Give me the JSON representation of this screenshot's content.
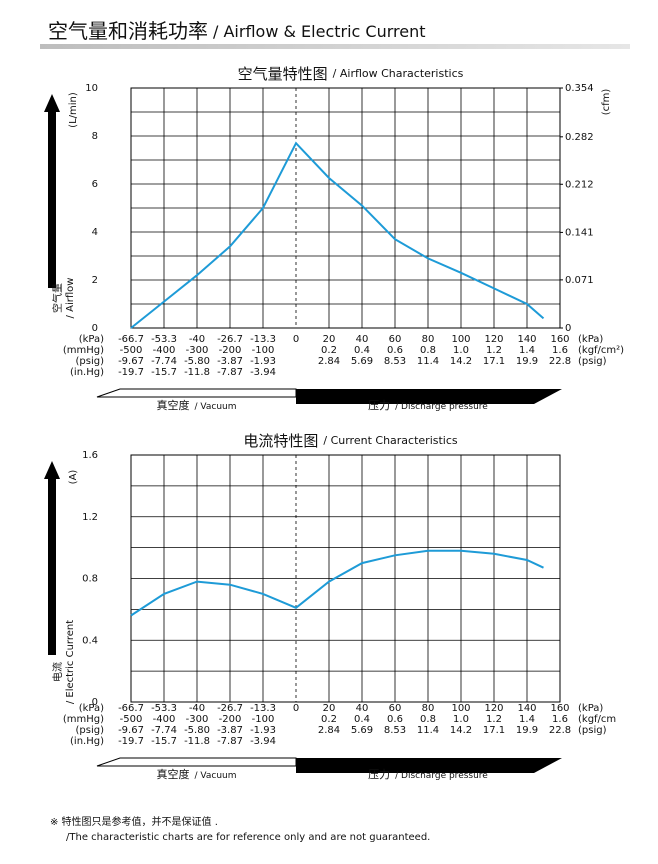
{
  "header": {
    "title_cn": "空气量和消耗功率",
    "title_en": "/ Airflow & Electric Current"
  },
  "chart_data": [
    {
      "type": "line",
      "title": "空气量特性图",
      "subtitle": "/ Airflow Characteristics",
      "y_label": "(L/min)",
      "y2_label": "(cfm)",
      "side_label_cn": "空气量",
      "side_label_en": "/ Airflow",
      "x": [
        -66.7,
        -53.3,
        -40,
        -26.7,
        -13.3,
        0,
        20,
        40,
        60,
        80,
        100,
        120,
        140,
        150
      ],
      "series": [
        {
          "color": "#1e9bd7",
          "values": [
            0,
            1.1,
            2.2,
            3.4,
            5.0,
            7.7,
            6.25,
            5.1,
            3.7,
            2.9,
            2.3,
            1.65,
            1.0,
            0.4
          ]
        }
      ],
      "xlim": [
        -66.7,
        160
      ],
      "xticks": [
        -66.7,
        -53.3,
        -40,
        -26.7,
        -13.3,
        0,
        20,
        40,
        60,
        80,
        100,
        120,
        140,
        160
      ],
      "x_rows": [
        [
          "-500",
          "-400",
          "-300",
          "-200",
          "-100",
          null,
          "0.2",
          "0.4",
          "0.6",
          "0.8",
          "1.0",
          "1.2",
          "1.4",
          "1.6"
        ],
        [
          "-9.67",
          "-7.74",
          "-5.80",
          "-3.87",
          "-1.93",
          null,
          "2.84",
          "5.69",
          "8.53",
          "11.4",
          "14.2",
          "17.1",
          "19.9",
          "22.8"
        ],
        [
          "-19.7",
          "-15.7",
          "-11.8",
          "-7.87",
          "-3.94",
          null,
          null,
          null,
          null,
          null,
          null,
          null,
          null,
          null
        ]
      ],
      "x_units_left": [
        "(kPa)",
        "(mmHg)",
        "(psig)",
        "(in.Hg)"
      ],
      "x_units_right": [
        "(kPa)",
        "(kgf/cm²)",
        "(psig)"
      ],
      "ylim": [
        0,
        10
      ],
      "yticks": [
        0,
        2,
        4,
        6,
        8,
        10
      ],
      "y_minor_ticks": [
        1,
        3,
        5,
        7,
        9
      ],
      "y2lim": [
        0,
        0.354
      ],
      "y2ticks": [
        0,
        0.071,
        0.141,
        0.212,
        0.282,
        0.354
      ],
      "zero_line": "dashed",
      "grid": true,
      "vacuum_label_cn": "真空度",
      "vacuum_label_en": "/ Vacuum",
      "pressure_label_cn": "压力",
      "pressure_label_en": "/ Discharge pressure"
    },
    {
      "type": "line",
      "title": "电流特性图",
      "subtitle": "/ Current Characteristics",
      "y_label": "(A)",
      "side_label_cn": "电流",
      "side_label_en": "/ Electric Current",
      "x": [
        -66.7,
        -53.3,
        -40,
        -26.7,
        -13.3,
        0,
        20,
        40,
        60,
        80,
        100,
        120,
        140,
        150
      ],
      "series": [
        {
          "color": "#1e9bd7",
          "values": [
            0.56,
            0.7,
            0.78,
            0.76,
            0.7,
            0.61,
            0.78,
            0.9,
            0.95,
            0.98,
            0.98,
            0.96,
            0.92,
            0.87
          ]
        }
      ],
      "xlim": [
        -66.7,
        160
      ],
      "xticks": [
        -66.7,
        -53.3,
        -40,
        -26.7,
        -13.3,
        0,
        20,
        40,
        60,
        80,
        100,
        120,
        140,
        160
      ],
      "x_rows": [
        [
          "-500",
          "-400",
          "-300",
          "-200",
          "-100",
          null,
          "0.2",
          "0.4",
          "0.6",
          "0.8",
          "1.0",
          "1.2",
          "1.4",
          "1.6"
        ],
        [
          "-9.67",
          "-7.74",
          "-5.80",
          "-3.87",
          "-1.93",
          null,
          "2.84",
          "5.69",
          "8.53",
          "11.4",
          "14.2",
          "17.1",
          "19.9",
          "22.8"
        ],
        [
          "-19.7",
          "-15.7",
          "-11.8",
          "-7.87",
          "-3.94",
          null,
          null,
          null,
          null,
          null,
          null,
          null,
          null,
          null
        ]
      ],
      "x_units_left": [
        "(kPa)",
        "(mmHg)",
        "(psig)",
        "(in.Hg)"
      ],
      "x_units_right": [
        "(kPa)",
        "(kgf/cm",
        "(psig)"
      ],
      "ylim": [
        0,
        1.6
      ],
      "yticks": [
        0,
        0.4,
        0.8,
        1.2,
        1.6
      ],
      "y_minor_ticks": [
        0.2,
        0.6,
        1.0,
        1.4
      ],
      "zero_line": "dashed",
      "grid": true,
      "vacuum_label_cn": "真空度",
      "vacuum_label_en": "/ Vacuum",
      "pressure_label_cn": "压力",
      "pressure_label_en": "/ Discharge pressure"
    }
  ],
  "footnote": {
    "line1": "※ 特性图只是参考值，并不是保证值 .",
    "line2": "/The characteristic charts are for reference only and are not guaranteed."
  }
}
